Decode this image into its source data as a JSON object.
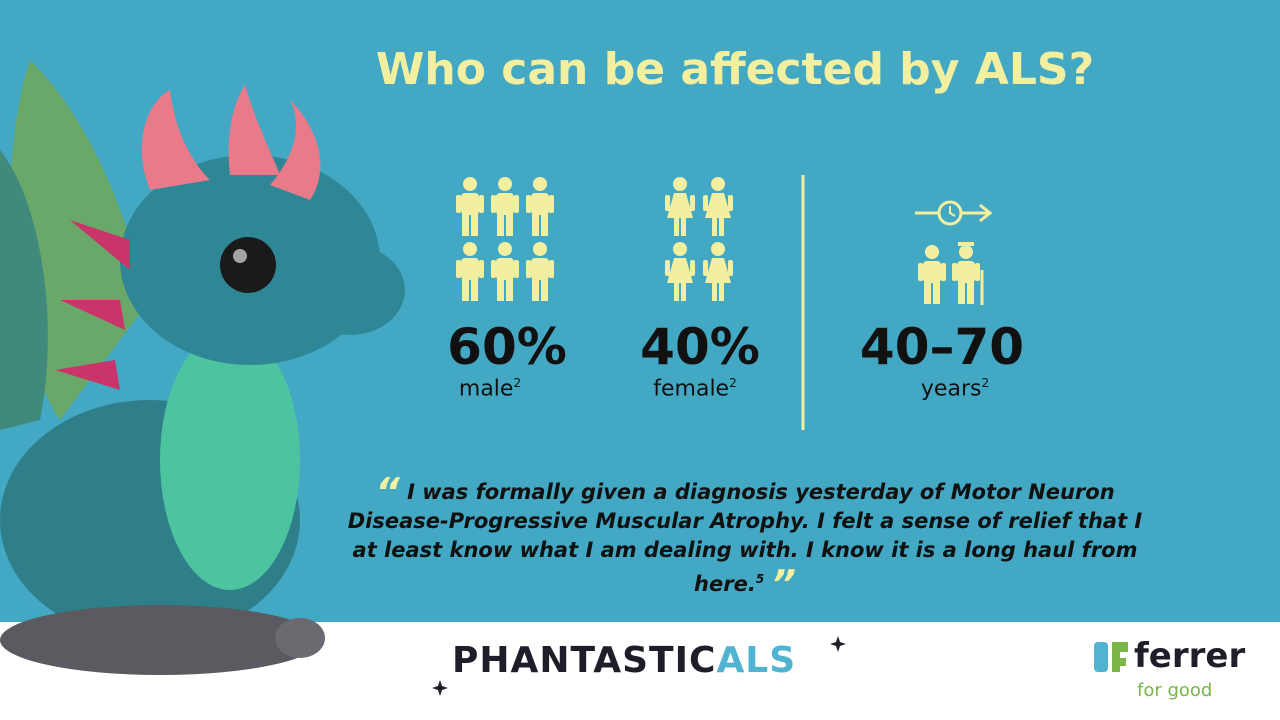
{
  "title": "Who can be affected by ALS?",
  "stats": [
    {
      "value": "60%",
      "label": "male",
      "note": "2"
    },
    {
      "value": "40%",
      "label": "female",
      "note": "2"
    },
    {
      "value": "40–70",
      "label": "years",
      "note": "2"
    }
  ],
  "quote": {
    "open_mark": "“",
    "text": "I was formally given a diagnosis yesterday of Motor Neuron Disease-Progressive Muscular Atrophy. I felt a sense of relief that I at least know what I am dealing with. I know it is a long haul from here.",
    "note": "5",
    "close_mark": "”"
  },
  "footer": {
    "brand": "PHANTASTIC",
    "brand_accent": "ALS",
    "logo": "ferrer",
    "tagline": "for good"
  }
}
